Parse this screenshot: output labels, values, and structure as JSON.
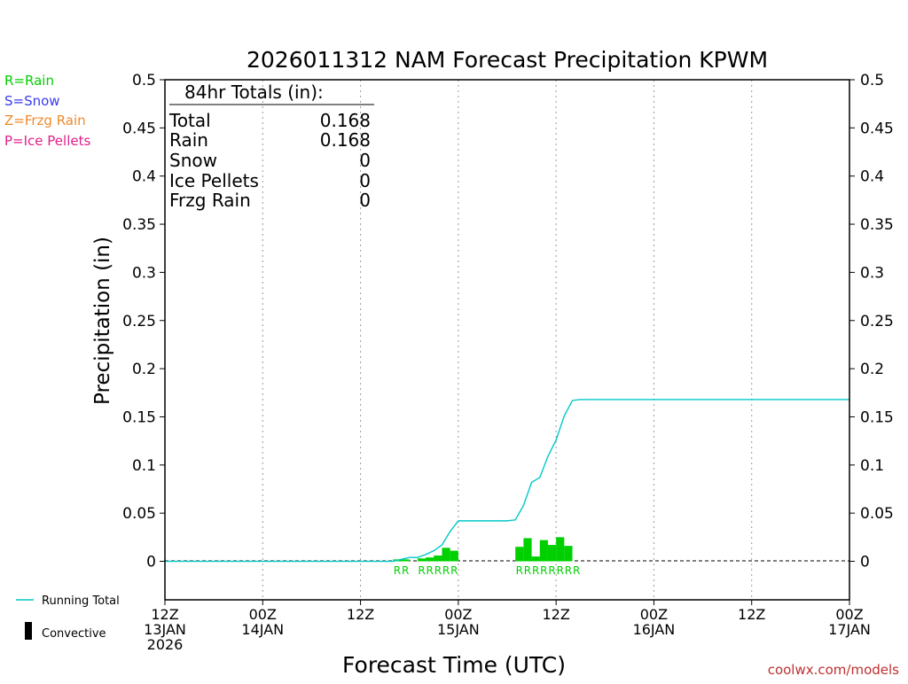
{
  "chart_data": {
    "type": "bar",
    "title": "2026011312 NAM Forecast Precipitation KPWM",
    "xlabel": "Forecast Time (UTC)",
    "ylabel": "Precipitation (in)",
    "ylim": [
      -0.04,
      0.5
    ],
    "x_unit": "forecast hour",
    "xlim": [
      0,
      84
    ],
    "y_ticks": [
      {
        "value": 0,
        "label": "0"
      },
      {
        "value": 0.05,
        "label": "0.05"
      },
      {
        "value": 0.1,
        "label": "0.1"
      },
      {
        "value": 0.15,
        "label": "0.15"
      },
      {
        "value": 0.2,
        "label": "0.2"
      },
      {
        "value": 0.25,
        "label": "0.25"
      },
      {
        "value": 0.3,
        "label": "0.3"
      },
      {
        "value": 0.35,
        "label": "0.35"
      },
      {
        "value": 0.4,
        "label": "0.4"
      },
      {
        "value": 0.45,
        "label": "0.45"
      },
      {
        "value": 0.5,
        "label": "0.5"
      }
    ],
    "x_ticks": [
      {
        "hour": 0,
        "lines": [
          "12Z",
          "13JAN",
          "2026"
        ]
      },
      {
        "hour": 12,
        "lines": [
          "00Z",
          "14JAN"
        ]
      },
      {
        "hour": 24,
        "lines": [
          "12Z"
        ]
      },
      {
        "hour": 36,
        "lines": [
          "00Z",
          "15JAN"
        ]
      },
      {
        "hour": 48,
        "lines": [
          "12Z"
        ]
      },
      {
        "hour": 60,
        "lines": [
          "00Z",
          "16JAN"
        ]
      },
      {
        "hour": 72,
        "lines": [
          "12Z"
        ]
      },
      {
        "hour": 84,
        "lines": [
          "00Z",
          "17JAN"
        ]
      }
    ],
    "grid_hours": [
      12,
      24,
      36,
      48,
      60,
      72
    ],
    "series": [
      {
        "name": "Hourly Rain",
        "color": "#00d000",
        "bar_width_hours": 1,
        "points": [
          {
            "hour": 29,
            "value": 0.002
          },
          {
            "hour": 30,
            "value": 0.002
          },
          {
            "hour": 32,
            "value": 0.003
          },
          {
            "hour": 33,
            "value": 0.004
          },
          {
            "hour": 34,
            "value": 0.006
          },
          {
            "hour": 35,
            "value": 0.014
          },
          {
            "hour": 36,
            "value": 0.011
          },
          {
            "hour": 44,
            "value": 0.015
          },
          {
            "hour": 45,
            "value": 0.024
          },
          {
            "hour": 46,
            "value": 0.005
          },
          {
            "hour": 47,
            "value": 0.022
          },
          {
            "hour": 48,
            "value": 0.017
          },
          {
            "hour": 49,
            "value": 0.025
          },
          {
            "hour": 50,
            "value": 0.016
          }
        ]
      },
      {
        "name": "Running Total",
        "color": "#00c8c8",
        "points": [
          [
            0,
            0
          ],
          [
            28,
            0
          ],
          [
            29,
            0.002
          ],
          [
            30,
            0.004
          ],
          [
            31,
            0.004
          ],
          [
            32,
            0.007
          ],
          [
            33,
            0.011
          ],
          [
            34,
            0.017
          ],
          [
            35,
            0.031
          ],
          [
            36,
            0.042
          ],
          [
            37,
            0.042
          ],
          [
            42,
            0.042
          ],
          [
            43,
            0.043
          ],
          [
            44,
            0.058
          ],
          [
            45,
            0.082
          ],
          [
            46,
            0.087
          ],
          [
            47,
            0.109
          ],
          [
            48,
            0.126
          ],
          [
            49,
            0.151
          ],
          [
            50,
            0.167
          ],
          [
            51,
            0.168
          ],
          [
            84,
            0.168
          ]
        ]
      }
    ],
    "ptype_markers": {
      "color": "#00d000",
      "letter": "R",
      "hours": [
        29,
        30,
        32,
        33,
        34,
        35,
        36,
        44,
        45,
        46,
        47,
        48,
        49,
        50,
        51
      ]
    },
    "totals_box": {
      "title": "84hr Totals (in):",
      "rows": [
        {
          "label": "Total",
          "value": "0.168"
        },
        {
          "label": "Rain",
          "value": "0.168"
        },
        {
          "label": "Snow",
          "value": "0"
        },
        {
          "label": "Ice Pellets",
          "value": "0"
        },
        {
          "label": "Frzg Rain",
          "value": "0"
        }
      ]
    }
  },
  "legend_ptype": [
    {
      "text": "R=Rain",
      "color": "#00d000"
    },
    {
      "text": "S=Snow",
      "color": "#3a3af0"
    },
    {
      "text": "Z=Frzg Rain",
      "color": "#f08a2a"
    },
    {
      "text": "P=Ice Pellets",
      "color": "#e0208a"
    }
  ],
  "legend_bottom": {
    "running_total": "Running Total",
    "convective": "Convective"
  },
  "credit": "coolwx.com/models",
  "colors": {
    "rain": "#00d000",
    "running_total": "#00c8c8",
    "credit": "#c03030"
  }
}
